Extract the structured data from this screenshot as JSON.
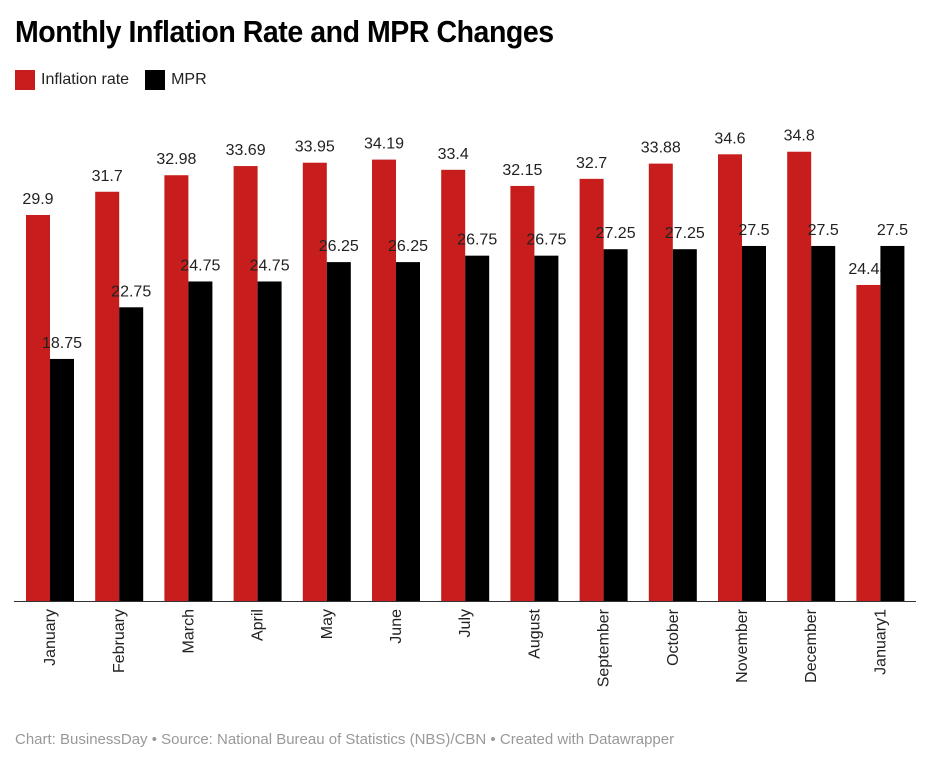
{
  "chart_data": {
    "type": "bar",
    "title": "Monthly Inflation Rate and MPR Changes",
    "categories": [
      "January",
      "February",
      "March",
      "April",
      "May",
      "June",
      "July",
      "August",
      "September",
      "October",
      "November",
      "December",
      "January1"
    ],
    "series": [
      {
        "name": "Inflation rate",
        "color": "#c71e1d",
        "values": [
          29.9,
          31.7,
          32.98,
          33.69,
          33.95,
          34.19,
          33.4,
          32.15,
          32.7,
          33.88,
          34.6,
          34.8,
          24.48
        ]
      },
      {
        "name": "MPR",
        "color": "#000000",
        "values": [
          18.75,
          22.75,
          24.75,
          24.75,
          26.25,
          26.25,
          26.75,
          26.75,
          27.25,
          27.25,
          27.5,
          27.5,
          27.5
        ]
      }
    ],
    "xlabel": "",
    "ylabel": "",
    "ylim": [
      0,
      38
    ],
    "grid": false,
    "legend": "top-left"
  },
  "footer": "Chart: BusinessDay • Source: National Bureau of Statistics (NBS)/CBN • Created with Datawrapper"
}
